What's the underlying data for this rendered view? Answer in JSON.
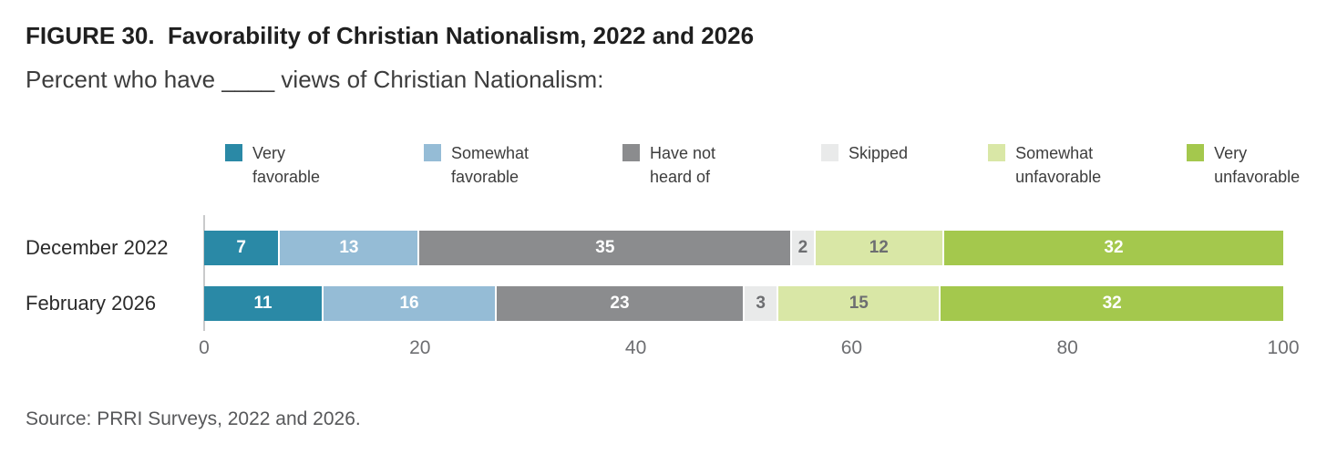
{
  "title": "FIGURE 30.  Favorability of Christian Nationalism, 2022 and 2026",
  "subtitle": "Percent who have ____ views of Christian Nationalism:",
  "source": "Source: PRRI Surveys, 2022 and 2026.",
  "chart_data": {
    "type": "bar",
    "stacked": true,
    "orientation": "horizontal",
    "title": "FIGURE 30.  Favorability of Christian Nationalism, 2022 and 2026",
    "subtitle": "Percent who have ____ views of Christian Nationalism:",
    "categories": [
      "December 2022",
      "February 2026"
    ],
    "series": [
      {
        "name": "Very favorable",
        "color": "#2a89a6",
        "label_color": "#ffffff",
        "values": [
          7,
          11
        ]
      },
      {
        "name": "Somewhat favorable",
        "color": "#95bcd6",
        "label_color": "#ffffff",
        "values": [
          13,
          16
        ]
      },
      {
        "name": "Have not heard of",
        "color": "#8b8c8e",
        "label_color": "#ffffff",
        "values": [
          35,
          23
        ]
      },
      {
        "name": "Skipped",
        "color": "#e9eaea",
        "label_color": "#6d6e71",
        "values": [
          2,
          3
        ]
      },
      {
        "name": "Somewhat unfavorable",
        "color": "#d9e7a6",
        "label_color": "#6d6e71",
        "values": [
          12,
          15
        ]
      },
      {
        "name": "Very unfavorable",
        "color": "#a4c84d",
        "label_color": "#ffffff",
        "values": [
          32,
          32
        ]
      }
    ],
    "x_ticks": [
      0,
      20,
      40,
      60,
      80,
      100
    ],
    "xlim": [
      0,
      100
    ],
    "grid": false,
    "legend_position": "top"
  }
}
